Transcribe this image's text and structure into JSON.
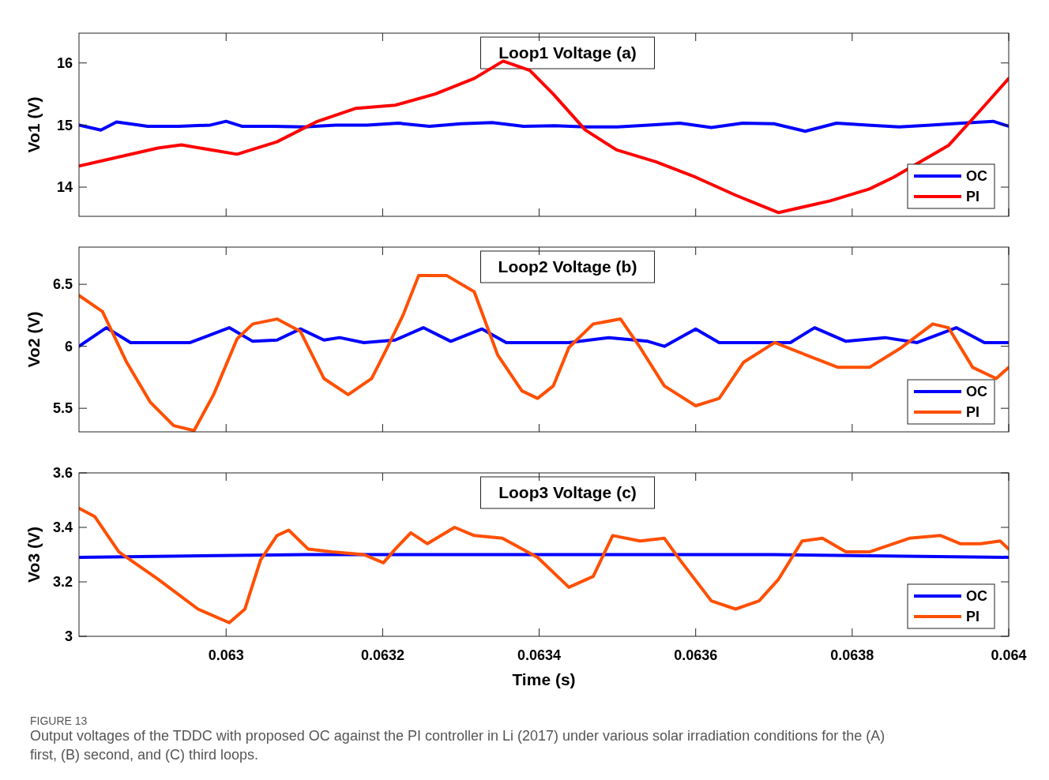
{
  "chart_data": [
    {
      "type": "line",
      "title": "Loop1 Voltage (a)",
      "ylabel": "Vo1 (V)",
      "xlim": [
        0.062812,
        0.064
      ],
      "ylim": [
        13.53,
        16.48
      ],
      "yticks": [
        14,
        15,
        16
      ],
      "xticks": [
        0.063,
        0.0632,
        0.0634,
        0.0636,
        0.0638,
        0.064
      ],
      "tick_labels": "y",
      "legend": "bottom right",
      "grid": false,
      "line_style": "solid",
      "marker": "none",
      "series": [
        {
          "name": "OC",
          "color": "#0000ff",
          "x": [
            0.062812,
            0.06284,
            0.06286,
            0.0629,
            0.06294,
            0.06298,
            0.063,
            0.06302,
            0.06306,
            0.0631,
            0.06314,
            0.06318,
            0.06322,
            0.06326,
            0.0633,
            0.06334,
            0.06338,
            0.06342,
            0.06346,
            0.0635,
            0.06354,
            0.06358,
            0.06362,
            0.06366,
            0.0637,
            0.06374,
            0.06378,
            0.06382,
            0.06386,
            0.0639,
            0.06394,
            0.06398,
            0.064
          ],
          "values": [
            15.0,
            14.92,
            15.05,
            14.98,
            14.98,
            15.0,
            15.06,
            14.98,
            14.98,
            14.97,
            15.0,
            15.0,
            15.03,
            14.98,
            15.02,
            15.04,
            14.98,
            14.99,
            14.97,
            14.97,
            15.0,
            15.03,
            14.96,
            15.03,
            15.02,
            14.9,
            15.03,
            15.0,
            14.97,
            15.0,
            15.03,
            15.06,
            14.98
          ]
        },
        {
          "name": "PI",
          "color": "#ff0000",
          "x": [
            0.062812,
            0.062913,
            0.062943,
            0.063014,
            0.063065,
            0.063115,
            0.063166,
            0.063216,
            0.063267,
            0.063317,
            0.063354,
            0.063388,
            0.063418,
            0.063459,
            0.063499,
            0.063549,
            0.0636,
            0.063651,
            0.063706,
            0.063772,
            0.063822,
            0.063853,
            0.063923,
            0.063964,
            0.064
          ],
          "values": [
            14.34,
            14.63,
            14.68,
            14.53,
            14.73,
            15.05,
            15.27,
            15.32,
            15.5,
            15.75,
            16.03,
            15.88,
            15.5,
            14.92,
            14.6,
            14.41,
            14.16,
            13.87,
            13.59,
            13.78,
            13.97,
            14.16,
            14.67,
            15.24,
            15.75
          ]
        }
      ]
    },
    {
      "type": "line",
      "title": "Loop2 Voltage (b)",
      "ylabel": "Vo2 (V)",
      "xlim": [
        0.062812,
        0.064
      ],
      "ylim": [
        5.31,
        6.8
      ],
      "yticks": [
        5.5,
        6,
        6.5
      ],
      "xticks": [
        0.063,
        0.0632,
        0.0634,
        0.0636,
        0.0638,
        0.064
      ],
      "tick_labels": "y",
      "legend": "bottom right",
      "grid": false,
      "line_style": "solid",
      "marker": "none",
      "series": [
        {
          "name": "OC",
          "color": "#0000ff",
          "x": [
            0.062812,
            0.062847,
            0.062878,
            0.062954,
            0.063004,
            0.063034,
            0.063065,
            0.063095,
            0.063125,
            0.063145,
            0.063176,
            0.063216,
            0.063252,
            0.063287,
            0.063327,
            0.063358,
            0.063438,
            0.063489,
            0.063539,
            0.06356,
            0.0636,
            0.06363,
            0.063721,
            0.063752,
            0.063792,
            0.063842,
            0.063883,
            0.063933,
            0.063969,
            0.064
          ],
          "values": [
            6.0,
            6.15,
            6.03,
            6.03,
            6.15,
            6.04,
            6.05,
            6.14,
            6.05,
            6.07,
            6.03,
            6.05,
            6.15,
            6.04,
            6.14,
            6.03,
            6.03,
            6.07,
            6.04,
            6.0,
            6.14,
            6.03,
            6.03,
            6.15,
            6.04,
            6.07,
            6.03,
            6.15,
            6.03,
            6.03
          ]
        },
        {
          "name": "PI",
          "color": "#ff4f00",
          "x": [
            0.062812,
            0.062842,
            0.062873,
            0.062903,
            0.062933,
            0.062959,
            0.062984,
            0.063014,
            0.063034,
            0.063065,
            0.063095,
            0.063125,
            0.063156,
            0.063186,
            0.063206,
            0.063226,
            0.063246,
            0.063282,
            0.063317,
            0.063347,
            0.063378,
            0.063398,
            0.063418,
            0.063438,
            0.063469,
            0.063504,
            0.063529,
            0.06356,
            0.0636,
            0.06363,
            0.063661,
            0.063701,
            0.063741,
            0.063782,
            0.063822,
            0.063863,
            0.063903,
            0.063923,
            0.063954,
            0.063984,
            0.064
          ],
          "values": [
            6.41,
            6.28,
            5.87,
            5.55,
            5.36,
            5.32,
            5.61,
            6.06,
            6.18,
            6.22,
            6.12,
            5.74,
            5.61,
            5.74,
            5.99,
            6.25,
            6.57,
            6.57,
            6.44,
            5.93,
            5.64,
            5.58,
            5.68,
            5.99,
            6.18,
            6.22,
            5.99,
            5.68,
            5.52,
            5.58,
            5.87,
            6.03,
            5.93,
            5.83,
            5.83,
            5.99,
            6.18,
            6.15,
            5.83,
            5.74,
            5.83
          ]
        }
      ]
    },
    {
      "type": "line",
      "title": "Loop3 Voltage (c)",
      "xlabel": "Time (s)",
      "ylabel": "Vo3 (V)",
      "xlim": [
        0.062812,
        0.064
      ],
      "ylim": [
        3,
        3.6
      ],
      "yticks": [
        3,
        3.2,
        3.4,
        3.6
      ],
      "xticks": [
        0.063,
        0.0632,
        0.0634,
        0.0636,
        0.0638,
        0.064
      ],
      "legend": "bottom right",
      "grid": false,
      "line_style": "solid",
      "marker": "none",
      "annotations": [
        "FIGURE 13",
        "Output voltages of the TDDC with proposed OC against the PI controller in Li (2017) under various solar irradiation conditions for the (A) first, (B) second, and (C) third loops."
      ],
      "series": [
        {
          "name": "OC",
          "color": "#0000ff",
          "x": [
            0.062812,
            0.0631,
            0.0634,
            0.0637,
            0.064
          ],
          "values": [
            3.29,
            3.3,
            3.3,
            3.3,
            3.29
          ]
        },
        {
          "name": "PI",
          "color": "#ff4f00",
          "x": [
            0.062812,
            0.062832,
            0.062863,
            0.062913,
            0.062964,
            0.063004,
            0.063024,
            0.063044,
            0.063065,
            0.06308,
            0.063105,
            0.063135,
            0.063176,
            0.063201,
            0.063216,
            0.063236,
            0.063257,
            0.063292,
            0.063317,
            0.063353,
            0.063398,
            0.063438,
            0.063469,
            0.063494,
            0.063529,
            0.06356,
            0.06358,
            0.06362,
            0.063651,
            0.063681,
            0.063706,
            0.063736,
            0.063762,
            0.063792,
            0.063822,
            0.063873,
            0.063913,
            0.063938,
            0.063964,
            0.063989,
            0.064
          ],
          "values": [
            3.47,
            3.44,
            3.31,
            3.21,
            3.1,
            3.05,
            3.1,
            3.28,
            3.37,
            3.39,
            3.32,
            3.31,
            3.3,
            3.27,
            3.32,
            3.38,
            3.34,
            3.4,
            3.37,
            3.36,
            3.29,
            3.18,
            3.22,
            3.37,
            3.35,
            3.36,
            3.28,
            3.13,
            3.1,
            3.13,
            3.21,
            3.35,
            3.36,
            3.31,
            3.31,
            3.36,
            3.37,
            3.34,
            3.34,
            3.35,
            3.32
          ]
        }
      ]
    }
  ]
}
